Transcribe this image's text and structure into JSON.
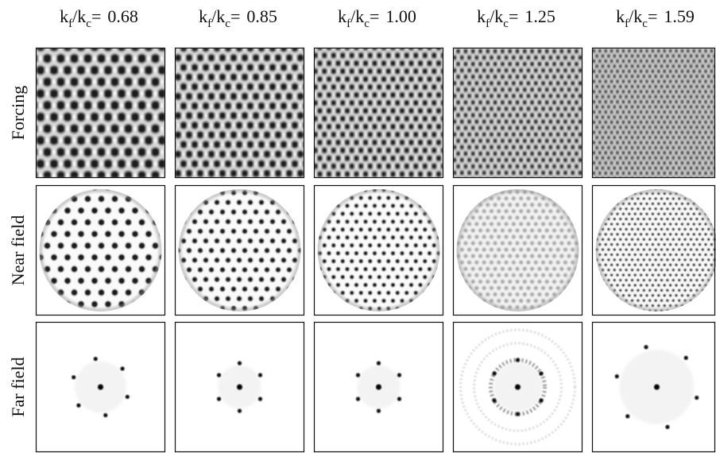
{
  "header": {
    "symbol_k": "k",
    "subscript_f": "f",
    "slash_k": "/k",
    "subscript_c": "c",
    "equals": "="
  },
  "columns": [
    "0.68",
    "0.85",
    "1.00",
    "1.25",
    "1.59"
  ],
  "rows": [
    "Forcing",
    "Near field",
    "Far field"
  ]
}
